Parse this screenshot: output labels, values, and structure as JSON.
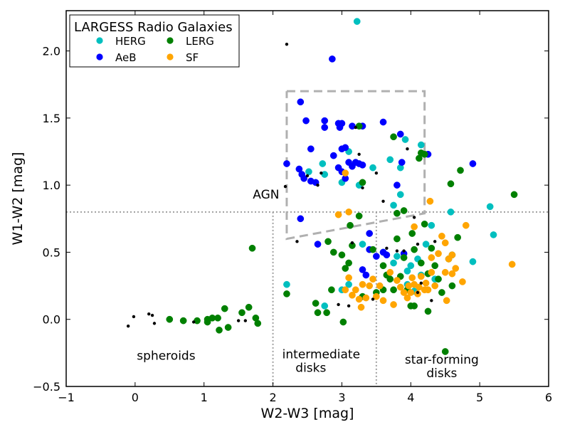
{
  "chart_data": {
    "type": "scatter",
    "xlabel": "W2-W3 [mag]",
    "ylabel": "W1-W2 [mag]",
    "xlim": [
      -1,
      6
    ],
    "ylim": [
      -0.5,
      2.3
    ],
    "x_ticks": [
      -1,
      0,
      1,
      2,
      3,
      4,
      5,
      6
    ],
    "y_ticks": [
      -0.5,
      0.0,
      0.5,
      1.0,
      1.5,
      2.0
    ],
    "x_tick_labels": [
      "−1",
      "0",
      "1",
      "2",
      "3",
      "4",
      "5",
      "6"
    ],
    "y_tick_labels": [
      "−0.5",
      "0.0",
      "0.5",
      "1.0",
      "1.5",
      "2.0"
    ],
    "legend": {
      "title": "LARGESS Radio Galaxies",
      "placement": "top-left",
      "entries": [
        "HERG",
        "AeB",
        "LERG",
        "SF"
      ]
    },
    "annotations": [
      {
        "text": "AGN",
        "x": 1.9,
        "y": 0.9
      },
      {
        "text": "spheroids",
        "x": 0.45,
        "y": -0.3
      },
      {
        "text": "intermediate",
        "x": 2.7,
        "y": -0.29
      },
      {
        "text": "disks",
        "x": 2.55,
        "y": -0.39
      },
      {
        "text": "star-forming",
        "x": 4.45,
        "y": -0.33
      },
      {
        "text": "disks",
        "x": 4.45,
        "y": -0.43
      }
    ],
    "reference_lines": [
      {
        "kind": "horizontal",
        "y": 0.8
      },
      {
        "kind": "vertical",
        "x": 2.0,
        "y_max": 0.8
      },
      {
        "kind": "vertical",
        "x": 3.5,
        "y_max": 0.8
      }
    ],
    "agn_wedge": [
      [
        2.2,
        1.7
      ],
      [
        4.2,
        1.7
      ],
      [
        4.2,
        0.79
      ],
      [
        2.2,
        0.6
      ],
      [
        2.2,
        1.7
      ]
    ],
    "series": [
      {
        "name": "HERG",
        "color": "#00bfbf",
        "points": [
          [
            3.22,
            2.22
          ],
          [
            2.52,
            1.1
          ],
          [
            2.72,
            1.16
          ],
          [
            2.75,
            1.08
          ],
          [
            3.0,
            1.02
          ],
          [
            3.1,
            1.25
          ],
          [
            3.25,
            1.0
          ],
          [
            3.45,
            1.13
          ],
          [
            3.7,
            1.19
          ],
          [
            3.85,
            1.13
          ],
          [
            3.92,
            1.34
          ],
          [
            4.15,
            1.3
          ],
          [
            3.85,
            0.93
          ],
          [
            3.75,
            0.85
          ],
          [
            4.3,
            0.7
          ],
          [
            4.58,
            0.8
          ],
          [
            5.15,
            0.84
          ],
          [
            5.2,
            0.63
          ],
          [
            4.9,
            0.43
          ],
          [
            4.22,
            0.56
          ],
          [
            3.8,
            0.47
          ],
          [
            3.6,
            0.5
          ],
          [
            3.75,
            0.42
          ],
          [
            4.0,
            0.4
          ],
          [
            4.15,
            0.33
          ],
          [
            3.3,
            0.56
          ],
          [
            3.1,
            0.26
          ],
          [
            3.0,
            0.22
          ],
          [
            2.75,
            0.1
          ],
          [
            2.2,
            0.26
          ],
          [
            3.95,
            0.26
          ],
          [
            4.05,
            0.21
          ],
          [
            4.35,
            0.3
          ],
          [
            4.1,
            0.45
          ],
          [
            3.95,
            0.36
          ]
        ]
      },
      {
        "name": "AeB",
        "color": "#0000ff",
        "points": [
          [
            2.86,
            1.94
          ],
          [
            2.4,
            1.62
          ],
          [
            2.48,
            1.48
          ],
          [
            2.55,
            1.27
          ],
          [
            2.75,
            1.48
          ],
          [
            2.75,
            1.43
          ],
          [
            2.95,
            1.46
          ],
          [
            2.97,
            1.43
          ],
          [
            3.0,
            1.46
          ],
          [
            3.15,
            1.44
          ],
          [
            3.3,
            1.44
          ],
          [
            3.6,
            1.47
          ],
          [
            3.85,
            1.38
          ],
          [
            2.2,
            1.16
          ],
          [
            2.38,
            1.12
          ],
          [
            2.42,
            1.08
          ],
          [
            2.45,
            1.05
          ],
          [
            2.55,
            1.03
          ],
          [
            2.62,
            1.02
          ],
          [
            2.88,
            1.22
          ],
          [
            2.95,
            1.13
          ],
          [
            3.0,
            1.27
          ],
          [
            3.05,
            1.28
          ],
          [
            3.1,
            1.17
          ],
          [
            3.15,
            1.14
          ],
          [
            3.2,
            1.17
          ],
          [
            3.25,
            1.16
          ],
          [
            3.3,
            1.15
          ],
          [
            3.05,
            1.05
          ],
          [
            3.0,
            1.1
          ],
          [
            3.8,
            1.0
          ],
          [
            4.25,
            1.23
          ],
          [
            4.9,
            1.16
          ],
          [
            2.4,
            0.75
          ],
          [
            2.65,
            0.56
          ],
          [
            3.4,
            0.64
          ],
          [
            3.5,
            0.47
          ],
          [
            3.65,
            0.48
          ],
          [
            3.9,
            0.49
          ],
          [
            3.3,
            0.37
          ],
          [
            3.35,
            0.33
          ],
          [
            3.4,
            0.52
          ],
          [
            3.6,
            0.5
          ],
          [
            3.87,
            1.17
          ]
        ]
      },
      {
        "name": "LERG",
        "color": "#008000",
        "points": [
          [
            0.5,
            0.0
          ],
          [
            0.7,
            -0.01
          ],
          [
            0.9,
            -0.01
          ],
          [
            1.05,
            0.0
          ],
          [
            1.05,
            -0.02
          ],
          [
            1.12,
            0.01
          ],
          [
            1.2,
            0.01
          ],
          [
            1.22,
            -0.08
          ],
          [
            1.3,
            0.08
          ],
          [
            1.35,
            -0.06
          ],
          [
            1.55,
            0.05
          ],
          [
            1.65,
            0.09
          ],
          [
            1.75,
            0.01
          ],
          [
            1.78,
            -0.03
          ],
          [
            1.7,
            0.53
          ],
          [
            2.2,
            0.19
          ],
          [
            2.62,
            0.12
          ],
          [
            2.65,
            0.05
          ],
          [
            2.78,
            0.05
          ],
          [
            2.85,
            0.22
          ],
          [
            2.8,
            0.58
          ],
          [
            2.88,
            0.5
          ],
          [
            3.0,
            0.48
          ],
          [
            3.02,
            -0.02
          ],
          [
            3.1,
            0.42
          ],
          [
            3.12,
            0.7
          ],
          [
            3.15,
            0.55
          ],
          [
            3.25,
            0.77
          ],
          [
            3.3,
            1.02
          ],
          [
            3.3,
            0.17
          ],
          [
            3.45,
            0.52
          ],
          [
            3.5,
            0.2
          ],
          [
            3.6,
            0.22
          ],
          [
            3.65,
            0.33
          ],
          [
            3.7,
            0.3
          ],
          [
            3.75,
            1.36
          ],
          [
            3.75,
            0.22
          ],
          [
            3.8,
            0.79
          ],
          [
            3.8,
            0.6
          ],
          [
            3.9,
            0.81
          ],
          [
            3.9,
            0.46
          ],
          [
            3.95,
            0.22
          ],
          [
            4.0,
            0.1
          ],
          [
            4.02,
            0.64
          ],
          [
            4.05,
            0.1
          ],
          [
            4.05,
            0.52
          ],
          [
            4.12,
            1.2
          ],
          [
            4.15,
            1.24
          ],
          [
            4.15,
            0.42
          ],
          [
            4.2,
            0.71
          ],
          [
            4.25,
            0.34
          ],
          [
            4.25,
            0.06
          ],
          [
            4.3,
            0.53
          ],
          [
            4.35,
            0.4
          ],
          [
            4.4,
            0.3
          ],
          [
            4.45,
            0.2
          ],
          [
            4.5,
            -0.24
          ],
          [
            4.55,
            0.45
          ],
          [
            4.6,
            0.25
          ],
          [
            4.6,
            0.48
          ],
          [
            4.58,
            1.01
          ],
          [
            4.68,
            0.61
          ],
          [
            4.72,
            1.11
          ],
          [
            5.5,
            0.93
          ],
          [
            3.25,
            1.44
          ],
          [
            4.2,
            1.23
          ],
          [
            3.05,
            0.38
          ],
          [
            3.85,
            0.32
          ],
          [
            3.6,
            0.4
          ]
        ]
      },
      {
        "name": "SF",
        "color": "#ffa500",
        "points": [
          [
            3.05,
            1.09
          ],
          [
            2.95,
            0.78
          ],
          [
            3.1,
            0.8
          ],
          [
            3.15,
            0.18
          ],
          [
            3.1,
            0.31
          ],
          [
            3.2,
            0.22
          ],
          [
            3.25,
            0.15
          ],
          [
            3.3,
            0.26
          ],
          [
            3.28,
            0.09
          ],
          [
            3.35,
            0.16
          ],
          [
            3.4,
            0.25
          ],
          [
            3.45,
            0.3
          ],
          [
            3.5,
            0.17
          ],
          [
            3.55,
            0.25
          ],
          [
            3.6,
            0.14
          ],
          [
            3.75,
            0.11
          ],
          [
            3.8,
            0.29
          ],
          [
            3.85,
            0.24
          ],
          [
            3.9,
            0.2
          ],
          [
            3.95,
            0.16
          ],
          [
            3.97,
            0.25
          ],
          [
            4.0,
            0.2
          ],
          [
            4.02,
            0.31
          ],
          [
            4.05,
            0.69
          ],
          [
            4.05,
            0.26
          ],
          [
            4.1,
            0.19
          ],
          [
            4.12,
            0.24
          ],
          [
            4.15,
            0.32
          ],
          [
            4.2,
            0.22
          ],
          [
            4.22,
            0.27
          ],
          [
            4.25,
            0.22
          ],
          [
            4.28,
            0.88
          ],
          [
            4.3,
            0.46
          ],
          [
            4.35,
            0.25
          ],
          [
            4.4,
            0.49
          ],
          [
            4.45,
            0.62
          ],
          [
            4.5,
            0.35
          ],
          [
            4.5,
            0.57
          ],
          [
            4.52,
            0.14
          ],
          [
            4.55,
            0.45
          ],
          [
            4.6,
            0.34
          ],
          [
            4.6,
            0.48
          ],
          [
            4.65,
            0.38
          ],
          [
            4.75,
            0.28
          ],
          [
            4.8,
            0.7
          ],
          [
            5.47,
            0.41
          ],
          [
            3.05,
            0.22
          ],
          [
            3.7,
            0.35
          ],
          [
            4.3,
            0.35
          ]
        ]
      },
      {
        "name": "",
        "color": "#000000",
        "marker": "small",
        "points": [
          [
            -0.1,
            -0.05
          ],
          [
            -0.02,
            0.02
          ],
          [
            0.2,
            0.04
          ],
          [
            0.25,
            0.03
          ],
          [
            0.28,
            -0.03
          ],
          [
            1.5,
            -0.01
          ],
          [
            1.6,
            -0.01
          ],
          [
            0.85,
            -0.02
          ],
          [
            2.18,
            0.99
          ],
          [
            2.2,
            2.05
          ],
          [
            2.35,
            0.58
          ],
          [
            2.65,
            1.0
          ],
          [
            2.5,
            1.07
          ],
          [
            2.7,
            1.09
          ],
          [
            2.95,
            0.11
          ],
          [
            3.1,
            0.1
          ],
          [
            3.15,
            0.57
          ],
          [
            3.25,
            1.23
          ],
          [
            3.2,
            1.43
          ],
          [
            3.3,
            0.98
          ],
          [
            3.5,
            1.09
          ],
          [
            3.6,
            0.88
          ],
          [
            3.65,
            0.53
          ],
          [
            3.8,
            0.51
          ],
          [
            3.9,
            0.51
          ],
          [
            3.95,
            1.27
          ],
          [
            4.05,
            0.76
          ],
          [
            4.1,
            0.56
          ],
          [
            4.1,
            0.2
          ],
          [
            4.15,
            0.27
          ],
          [
            4.3,
            0.14
          ],
          [
            4.35,
            0.58
          ],
          [
            3.45,
            0.15
          ]
        ]
      }
    ]
  }
}
